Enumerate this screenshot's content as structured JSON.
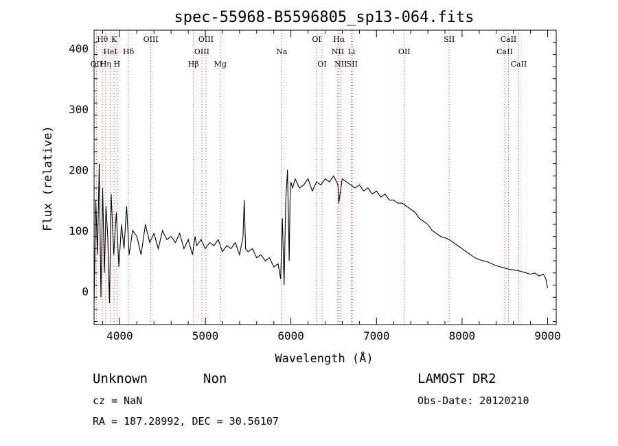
{
  "chart_data": {
    "type": "line",
    "title": "spec-55968-B5596805_sp13-064.fits",
    "xlabel": "Wavelength (Å)",
    "ylabel": "Flux (relative)",
    "xlim": [
      3700,
      9100
    ],
    "ylim": [
      -55,
      430
    ],
    "xticks": [
      4000,
      5000,
      6000,
      7000,
      8000,
      9000
    ],
    "yticks": [
      0,
      100,
      200,
      300,
      400
    ],
    "grid": false,
    "series": [
      {
        "x": [
          3700,
          3720,
          3740,
          3760,
          3780,
          3800,
          3820,
          3840,
          3860,
          3880,
          3900,
          3930,
          3960,
          3990,
          4020,
          4050,
          4080,
          4110,
          4150,
          4200,
          4250,
          4300,
          4350,
          4400,
          4450,
          4500,
          4550,
          4600,
          4650,
          4700,
          4750,
          4800,
          4850,
          4880,
          4900,
          4950,
          5000,
          5050,
          5100,
          5150,
          5200,
          5250,
          5300,
          5350,
          5400,
          5440,
          5455,
          5470,
          5500,
          5550,
          5600,
          5650,
          5700,
          5750,
          5800,
          5850,
          5880,
          5900,
          5920,
          5940,
          5960,
          5980,
          5990,
          6000,
          6020,
          6050,
          6100,
          6150,
          6200,
          6250,
          6300,
          6350,
          6400,
          6450,
          6500,
          6550,
          6560,
          6600,
          6650,
          6700,
          6750,
          6800,
          6850,
          6900,
          6950,
          7000,
          7050,
          7100,
          7150,
          7200,
          7250,
          7300,
          7350,
          7400,
          7450,
          7500,
          7550,
          7600,
          7650,
          7700,
          7750,
          7800,
          7850,
          7900,
          7950,
          8000,
          8050,
          8100,
          8150,
          8200,
          8250,
          8300,
          8350,
          8400,
          8450,
          8500,
          8550,
          8600,
          8650,
          8700,
          8750,
          8800,
          8850,
          8900,
          8950,
          8980,
          9000
        ],
        "y": [
          -20,
          150,
          60,
          210,
          -10,
          170,
          30,
          140,
          90,
          -20,
          160,
          60,
          130,
          40,
          110,
          70,
          140,
          60,
          100,
          90,
          60,
          110,
          80,
          95,
          70,
          100,
          85,
          90,
          80,
          95,
          70,
          85,
          60,
          90,
          75,
          85,
          70,
          80,
          75,
          85,
          65,
          75,
          70,
          80,
          60,
          90,
          150,
          70,
          65,
          70,
          55,
          60,
          50,
          55,
          40,
          45,
          20,
          120,
          10,
          150,
          200,
          50,
          150,
          180,
          170,
          185,
          170,
          175,
          185,
          165,
          180,
          175,
          185,
          180,
          190,
          175,
          145,
          185,
          180,
          175,
          170,
          175,
          165,
          170,
          160,
          165,
          155,
          160,
          150,
          150,
          145,
          145,
          140,
          135,
          130,
          120,
          115,
          110,
          100,
          95,
          90,
          88,
          85,
          80,
          75,
          70,
          65,
          60,
          55,
          52,
          50,
          48,
          45,
          42,
          40,
          38,
          36,
          35,
          34,
          32,
          30,
          28,
          30,
          25,
          28,
          20,
          5
        ]
      }
    ],
    "lines": [
      {
        "name": "OII",
        "x": 3727,
        "row": 3
      },
      {
        "name": "Hθ",
        "x": 3798,
        "row": 1
      },
      {
        "name": "Hη",
        "x": 3835,
        "row": 3
      },
      {
        "name": "HeI",
        "x": 3889,
        "row": 2
      },
      {
        "name": "K",
        "x": 3934,
        "row": 1
      },
      {
        "name": "H",
        "x": 3968,
        "row": 3
      },
      {
        "name": "Hδ",
        "x": 4102,
        "row": 2
      },
      {
        "name": "OIII",
        "x": 4363,
        "row": 1
      },
      {
        "name": "Hβ",
        "x": 4861,
        "row": 3
      },
      {
        "name": "OIII",
        "x": 4959,
        "row": 2
      },
      {
        "name": "OIII",
        "x": 5007,
        "row": 1
      },
      {
        "name": "Mg",
        "x": 5175,
        "row": 3
      },
      {
        "name": "Na",
        "x": 5893,
        "row": 2
      },
      {
        "name": "OI",
        "x": 6300,
        "row": 1
      },
      {
        "name": "OI",
        "x": 6363,
        "row": 3
      },
      {
        "name": "NII",
        "x": 6548,
        "row": 2
      },
      {
        "name": "Hα",
        "x": 6563,
        "row": 1
      },
      {
        "name": "NII",
        "x": 6583,
        "row": 3
      },
      {
        "name": "Li",
        "x": 6708,
        "row": 2
      },
      {
        "name": "SII",
        "x": 6716,
        "row": 3
      },
      {
        "name": "OII",
        "x": 7325,
        "row": 2
      },
      {
        "name": "SII",
        "x": 7850,
        "row": 1
      },
      {
        "name": "CaII",
        "x": 8498,
        "row": 2
      },
      {
        "name": "CaII",
        "x": 8542,
        "row": 1
      },
      {
        "name": "CaII",
        "x": 8662,
        "row": 3
      }
    ]
  },
  "info": {
    "class": "Unknown",
    "subclass": "Non",
    "survey": "LAMOST DR2",
    "cz": "cz = NaN",
    "obs_date": "Obs-Date: 20120210",
    "radec": "RA = 187.28992, DEC =  30.56107"
  },
  "colors": {
    "line_marker": "#e03030",
    "axis_marker": "#808080",
    "spectrum": "#000000"
  }
}
